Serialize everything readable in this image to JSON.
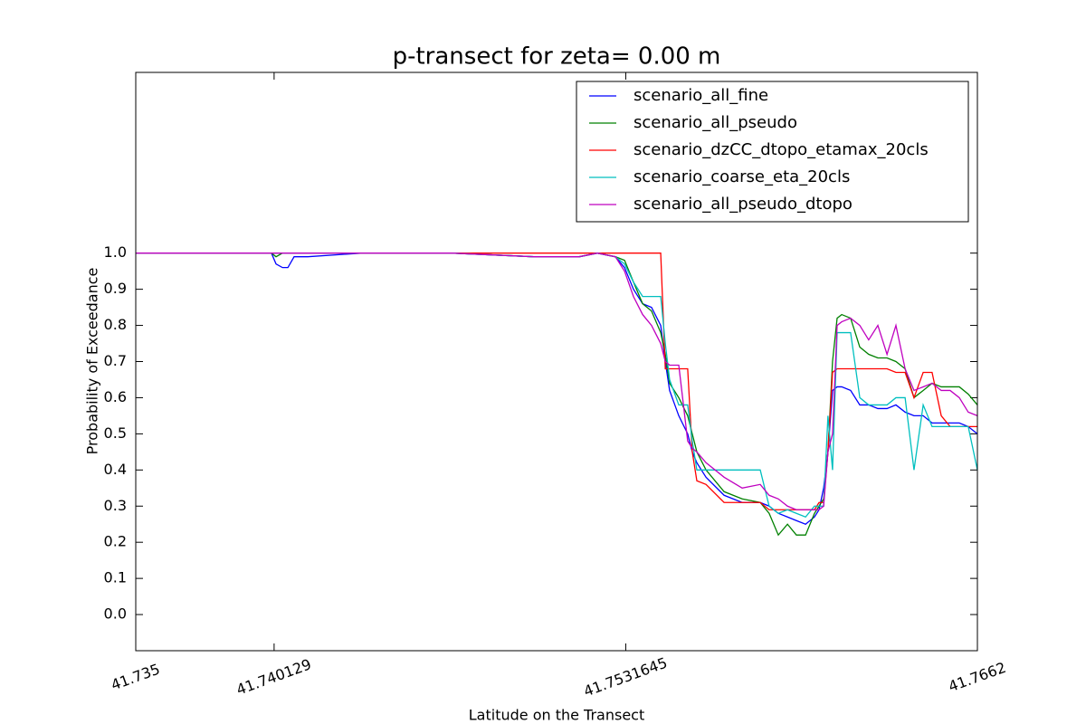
{
  "chart_data": {
    "type": "line",
    "title": "p-transect for zeta= 0.00 m",
    "xlabel": "Latitude on the Transect",
    "ylabel": "Probability of Exceedance",
    "xlim": [
      41.735,
      41.7662
    ],
    "xticks": [
      41.735,
      41.740129,
      41.7531645,
      41.7662
    ],
    "ylim": [
      -0.1,
      1.5
    ],
    "yticks": [
      {
        "value": 0,
        "label": "0.0"
      },
      0.1,
      0.2,
      0.3,
      0.4,
      0.5,
      0.6,
      0.7,
      0.8,
      0.9,
      {
        "value": 1,
        "label": "1.0"
      }
    ],
    "grid": false,
    "legend": "upper right",
    "x": [
      41.735,
      41.74003,
      41.7402,
      41.74044,
      41.74064,
      41.74087,
      41.74137,
      41.74339,
      41.74674,
      41.74976,
      41.75144,
      41.75211,
      41.75278,
      41.75312,
      41.75345,
      41.75379,
      41.75412,
      41.75446,
      41.75463,
      41.75479,
      41.75513,
      41.75546,
      41.75563,
      41.7558,
      41.75614,
      41.75681,
      41.75748,
      41.75815,
      41.75848,
      41.75882,
      41.75916,
      41.75949,
      41.75983,
      41.76016,
      41.76033,
      41.7605,
      41.76066,
      41.76083,
      41.761,
      41.76117,
      41.7615,
      41.76184,
      41.76217,
      41.76251,
      41.76285,
      41.76318,
      41.76352,
      41.76385,
      41.76419,
      41.76452,
      41.76486,
      41.76519,
      41.76553,
      41.76586,
      41.7662
    ],
    "series": [
      {
        "name": "scenario_all_fine",
        "color": "#0000ff",
        "values": [
          1,
          1,
          0.97,
          0.96,
          0.96,
          0.99,
          0.99,
          1,
          1,
          0.99,
          0.99,
          1,
          0.99,
          0.96,
          0.9,
          0.86,
          0.85,
          0.8,
          0.7,
          0.62,
          0.55,
          0.5,
          0.45,
          0.42,
          0.38,
          0.33,
          0.31,
          0.31,
          0.3,
          0.28,
          0.27,
          0.26,
          0.25,
          0.27,
          0.29,
          0.35,
          0.45,
          0.62,
          0.63,
          0.63,
          0.62,
          0.58,
          0.58,
          0.57,
          0.57,
          0.58,
          0.56,
          0.55,
          0.55,
          0.53,
          0.53,
          0.53,
          0.53,
          0.52,
          0.5
        ]
      },
      {
        "name": "scenario_all_pseudo",
        "color": "#008000",
        "values": [
          1,
          1,
          0.99,
          1,
          1,
          1,
          1,
          1,
          1,
          0.99,
          0.99,
          1,
          0.99,
          0.98,
          0.92,
          0.86,
          0.84,
          0.78,
          0.72,
          0.64,
          0.6,
          0.55,
          0.5,
          0.45,
          0.4,
          0.34,
          0.32,
          0.31,
          0.28,
          0.22,
          0.25,
          0.22,
          0.22,
          0.28,
          0.3,
          0.32,
          0.45,
          0.7,
          0.82,
          0.83,
          0.82,
          0.74,
          0.72,
          0.71,
          0.71,
          0.7,
          0.68,
          0.6,
          0.62,
          0.64,
          0.63,
          0.63,
          0.63,
          0.61,
          0.58
        ]
      },
      {
        "name": "scenario_dzCC_dtopo_etamax_20cls",
        "color": "#ff0000",
        "values": [
          1,
          1,
          1,
          1,
          1,
          1,
          1,
          1,
          1,
          1,
          1,
          1,
          1,
          1,
          1,
          1,
          1,
          1,
          0.68,
          0.68,
          0.68,
          0.68,
          0.45,
          0.37,
          0.36,
          0.31,
          0.31,
          0.31,
          0.29,
          0.29,
          0.29,
          0.29,
          0.29,
          0.29,
          0.31,
          0.31,
          0.45,
          0.67,
          0.68,
          0.68,
          0.68,
          0.68,
          0.68,
          0.68,
          0.68,
          0.67,
          0.67,
          0.6,
          0.67,
          0.67,
          0.55,
          0.52,
          0.52,
          0.52,
          0.52
        ]
      },
      {
        "name": "scenario_coarse_eta_20cls",
        "color": "#00bfbf",
        "values": [
          1,
          1,
          1,
          1,
          1,
          1,
          1,
          1,
          1,
          0.99,
          0.99,
          1,
          0.99,
          0.97,
          0.92,
          0.88,
          0.88,
          0.88,
          0.75,
          0.65,
          0.58,
          0.58,
          0.48,
          0.4,
          0.4,
          0.4,
          0.4,
          0.4,
          0.3,
          0.28,
          0.29,
          0.28,
          0.27,
          0.3,
          0.3,
          0.3,
          0.55,
          0.4,
          0.78,
          0.78,
          0.78,
          0.6,
          0.58,
          0.58,
          0.58,
          0.6,
          0.6,
          0.4,
          0.58,
          0.52,
          0.52,
          0.52,
          0.52,
          0.52,
          0.4
        ]
      },
      {
        "name": "scenario_all_pseudo_dtopo",
        "color": "#bf00bf",
        "values": [
          1,
          1,
          1,
          1,
          1,
          1,
          1,
          1,
          1,
          0.99,
          0.99,
          1,
          0.99,
          0.95,
          0.88,
          0.83,
          0.8,
          0.75,
          0.7,
          0.69,
          0.69,
          0.48,
          0.46,
          0.45,
          0.42,
          0.38,
          0.35,
          0.36,
          0.33,
          0.32,
          0.3,
          0.29,
          0.29,
          0.29,
          0.29,
          0.3,
          0.45,
          0.5,
          0.8,
          0.81,
          0.82,
          0.8,
          0.76,
          0.8,
          0.72,
          0.8,
          0.68,
          0.62,
          0.63,
          0.64,
          0.62,
          0.62,
          0.6,
          0.56,
          0.55
        ]
      }
    ]
  }
}
